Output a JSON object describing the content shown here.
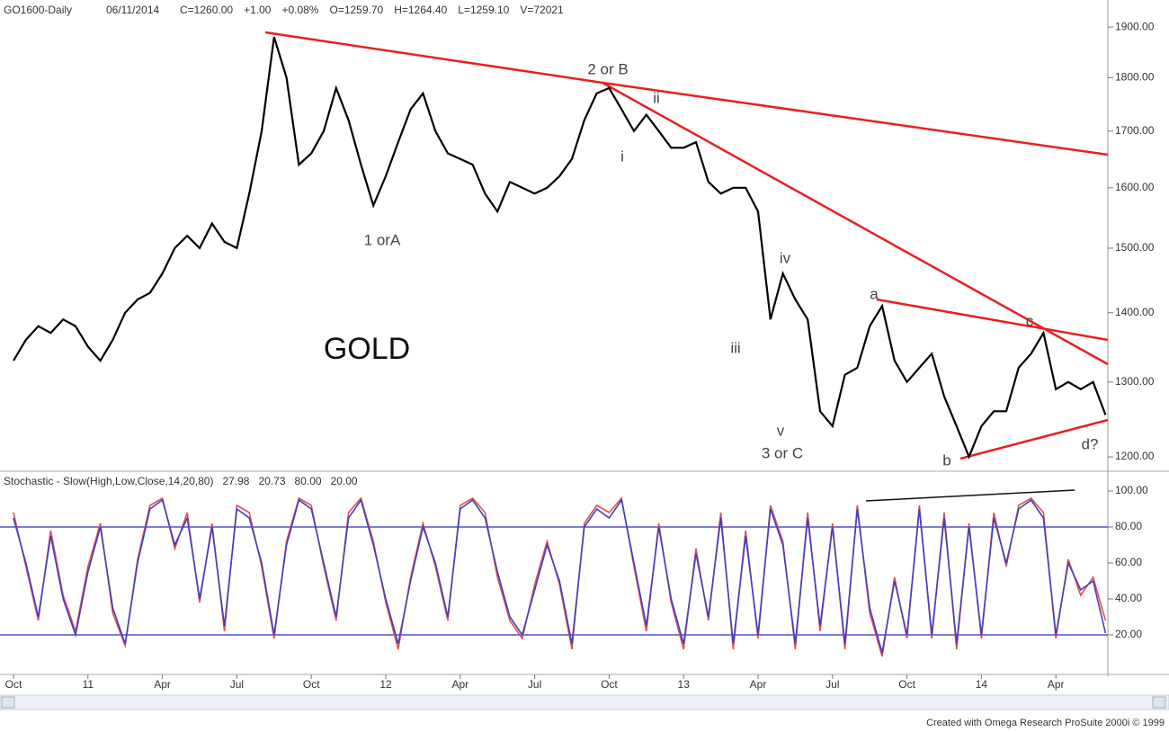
{
  "header": {
    "symbol": "GO1600-Daily",
    "date": "06/11/2014",
    "quotes": [
      {
        "text": "C=1260.00",
        "color": "#33cc33"
      },
      {
        "text": "+1.00",
        "color": "#33cc33"
      },
      {
        "text": "+0.08%",
        "color": "#33cc33"
      },
      {
        "text": "O=1259.70",
        "color": "#e02020"
      },
      {
        "text": "H=1264.40",
        "color": "#333333"
      },
      {
        "text": "L=1259.10",
        "color": "#333333"
      },
      {
        "text": "V=72021",
        "color": "#333333"
      }
    ]
  },
  "footer": "Created with Omega Research ProSuite 2000i © 1999",
  "chart_data": [
    {
      "type": "line",
      "title": "GOLD",
      "log_scale": true,
      "categories": [
        "Oct",
        null,
        null,
        null,
        null,
        null,
        "11",
        null,
        null,
        null,
        null,
        null,
        "Apr",
        null,
        null,
        null,
        null,
        null,
        "Jul",
        null,
        null,
        null,
        null,
        null,
        "Oct",
        null,
        null,
        null,
        null,
        null,
        "12",
        null,
        null,
        null,
        null,
        null,
        "Apr",
        null,
        null,
        null,
        null,
        null,
        "Jul",
        null,
        null,
        null,
        null,
        null,
        "Oct",
        null,
        null,
        null,
        null,
        null,
        "13",
        null,
        null,
        null,
        null,
        null,
        "Apr",
        null,
        null,
        null,
        null,
        null,
        "Jul",
        null,
        null,
        null,
        null,
        null,
        "Oct",
        null,
        null,
        null,
        null,
        null,
        "14",
        null,
        null,
        null,
        null,
        null,
        "Apr",
        null,
        null,
        null,
        null
      ],
      "series": [
        {
          "name": "GO1600-Daily",
          "color": "#000000",
          "values": [
            1330,
            1360,
            1380,
            1370,
            1390,
            1380,
            1350,
            1330,
            1360,
            1400,
            1420,
            1430,
            1460,
            1500,
            1520,
            1500,
            1540,
            1510,
            1500,
            1590,
            1700,
            1880,
            1800,
            1640,
            1660,
            1700,
            1780,
            1720,
            1640,
            1570,
            1620,
            1680,
            1740,
            1770,
            1700,
            1660,
            1650,
            1640,
            1590,
            1560,
            1610,
            1600,
            1590,
            1600,
            1620,
            1650,
            1720,
            1770,
            1780,
            1740,
            1700,
            1730,
            1700,
            1670,
            1670,
            1680,
            1610,
            1590,
            1600,
            1600,
            1560,
            1390,
            1460,
            1420,
            1390,
            1260,
            1240,
            1310,
            1320,
            1380,
            1410,
            1330,
            1300,
            1320,
            1340,
            1280,
            1240,
            1200,
            1240,
            1260,
            1260,
            1320,
            1340,
            1370,
            1290,
            1300,
            1290,
            1300,
            1255
          ]
        }
      ],
      "ylim": [
        1184,
        1952
      ],
      "yticks": [
        {
          "value": 1200,
          "label": "1200.00"
        },
        {
          "value": 1300,
          "label": "1300.00"
        },
        {
          "value": 1400,
          "label": "1400.00"
        },
        {
          "value": 1500,
          "label": "1500.00"
        },
        {
          "value": 1600,
          "label": "1600.00"
        },
        {
          "value": 1700,
          "label": "1700.00"
        },
        {
          "value": 1800,
          "label": "1800.00"
        },
        {
          "value": 1900,
          "label": "1900.00"
        }
      ],
      "annotations": [
        "2 or B",
        "ii",
        "i",
        "1 orA",
        "iv",
        "iii",
        "v",
        "3 or C",
        "a",
        "c",
        "b",
        "d?"
      ],
      "line_color": "#e82020"
    },
    {
      "type": "line",
      "title": "Stochastic - Slow(High,Low,Close,14,20,80)",
      "series": [
        {
          "name": "27.98",
          "color": "#e05050",
          "values": [
            88,
            58,
            28,
            78,
            42,
            22,
            58,
            82,
            32,
            14,
            62,
            92,
            96,
            68,
            88,
            38,
            82,
            22,
            92,
            88,
            58,
            18,
            72,
            96,
            92,
            58,
            28,
            88,
            96,
            72,
            38,
            12,
            52,
            82,
            58,
            28,
            92,
            96,
            88,
            52,
            28,
            18,
            48,
            72,
            48,
            12,
            82,
            92,
            88,
            96,
            58,
            22,
            82,
            38,
            12,
            68,
            28,
            88,
            12,
            78,
            18,
            92,
            72,
            12,
            88,
            22,
            82,
            12,
            92,
            32,
            8,
            52,
            18,
            92,
            18,
            88,
            12,
            82,
            18,
            88,
            58,
            92,
            96,
            88,
            18,
            62,
            42,
            52,
            28
          ]
        },
        {
          "name": "20.73",
          "color": "#4040c0",
          "values": [
            85,
            60,
            30,
            75,
            40,
            20,
            55,
            80,
            35,
            15,
            60,
            90,
            95,
            70,
            85,
            40,
            80,
            25,
            90,
            85,
            60,
            20,
            70,
            95,
            90,
            60,
            30,
            85,
            95,
            70,
            40,
            15,
            50,
            80,
            60,
            30,
            90,
            95,
            85,
            55,
            30,
            20,
            45,
            70,
            50,
            15,
            80,
            90,
            85,
            95,
            60,
            25,
            80,
            40,
            15,
            65,
            30,
            85,
            15,
            75,
            20,
            90,
            70,
            15,
            85,
            25,
            80,
            15,
            90,
            35,
            10,
            50,
            20,
            90,
            20,
            85,
            15,
            80,
            20,
            85,
            60,
            90,
            95,
            85,
            20,
            60,
            45,
            50,
            21
          ]
        }
      ],
      "ylim": [
        0,
        109
      ],
      "yticks": [
        {
          "value": 20,
          "label": "20.00"
        },
        {
          "value": 40,
          "label": "40.00"
        },
        {
          "value": 60,
          "label": "60.00"
        },
        {
          "value": 80,
          "label": "80.00"
        },
        {
          "value": 100,
          "label": "100.00"
        }
      ],
      "levels": [
        {
          "value": 80,
          "label": "80.00"
        },
        {
          "value": 20,
          "label": "20.00"
        }
      ],
      "level_color": "#5050c8"
    }
  ]
}
